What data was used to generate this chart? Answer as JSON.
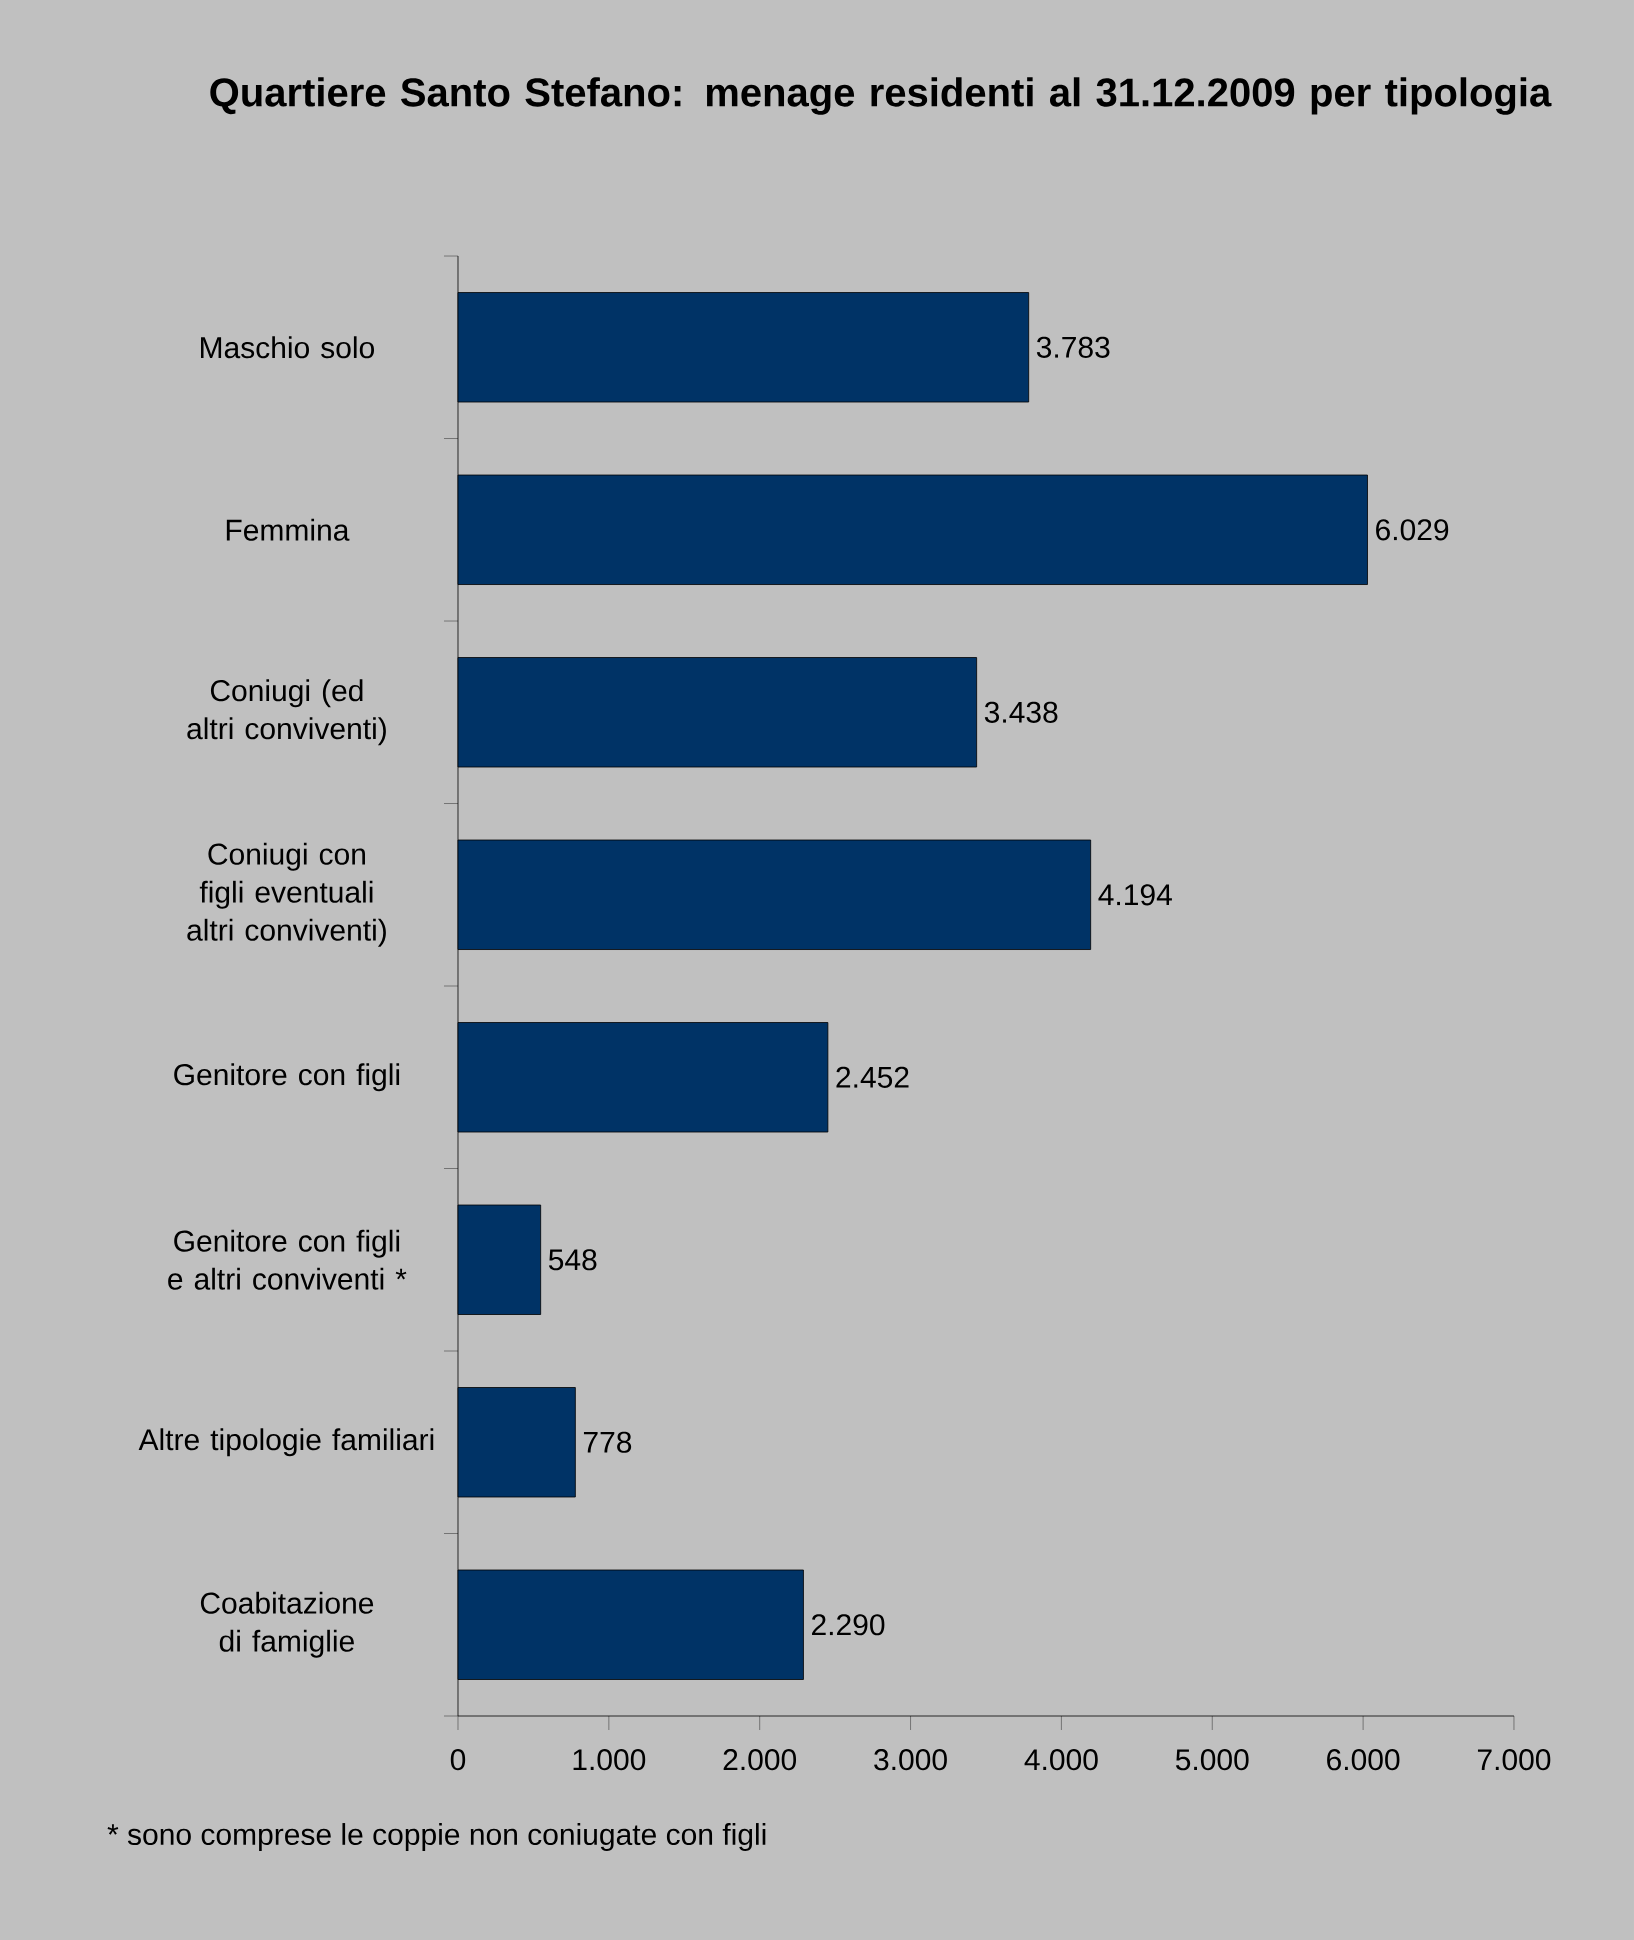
{
  "chart_data": {
    "type": "bar",
    "orientation": "horizontal",
    "title": "Quartiere Santo Stefano: menage residenti al 31.12.2009 per tipologia",
    "categories": [
      "Maschio solo",
      "Femmina",
      "Coniugi (ed altri conviventi)",
      "Coniugi con figli eventuali altri conviventi)",
      "Genitore con figli",
      "Genitore con figli e altri conviventi *",
      "Altre tipologie familiari",
      "Coabitazione di famiglie"
    ],
    "values": [
      3783,
      6029,
      3438,
      4194,
      2452,
      548,
      778,
      2290
    ],
    "value_labels": [
      "3.783",
      "6.029",
      "3.438",
      "4.194",
      "2.452",
      "548",
      "778",
      "2.290"
    ],
    "color": "#003366",
    "xlim": [
      0,
      7000
    ],
    "xticks": [
      0,
      {
        "value": 1000,
        "label": "1.000"
      },
      {
        "value": 2000,
        "label": "2.000"
      },
      {
        "value": 3000,
        "label": "3.000"
      },
      {
        "value": 4000,
        "label": "4.000"
      },
      {
        "value": 5000,
        "label": "5.000"
      },
      {
        "value": 6000,
        "label": "6.000"
      },
      {
        "value": 7000,
        "label": "7.000"
      }
    ],
    "annotations": [
      "* sono comprese le coppie non coniugate con figli"
    ]
  }
}
